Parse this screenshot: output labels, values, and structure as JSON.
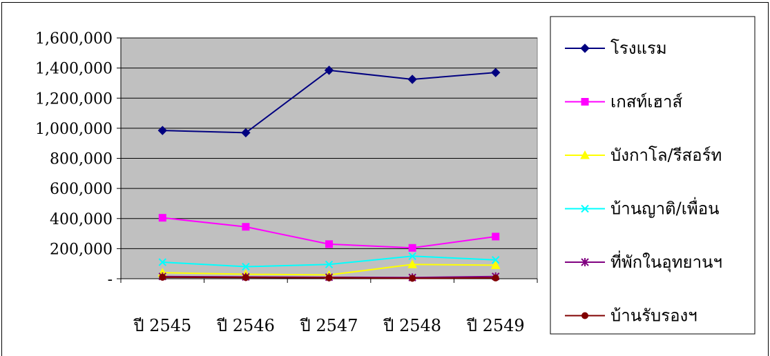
{
  "chart_data": {
    "type": "line",
    "title": "",
    "xlabel": "",
    "ylabel": "",
    "categories": [
      "ปี 2545",
      "ปี 2546",
      "ปี 2547",
      "ปี 2548",
      "ปี 2549"
    ],
    "ylim": [
      0,
      1600000
    ],
    "yticks": [
      0,
      200000,
      400000,
      600000,
      800000,
      1000000,
      1200000,
      1400000,
      1600000
    ],
    "ytick_labels": [
      "-",
      "200,000",
      "400,000",
      "600,000",
      "800,000",
      "1,000,000",
      "1,200,000",
      "1,400,000",
      "1,600,000"
    ],
    "grid": true,
    "plot_background": "#c0c0c0",
    "legend_position": "right",
    "series": [
      {
        "name": "โรงแรม",
        "color": "#000080",
        "marker": "diamond",
        "values": [
          985000,
          970000,
          1385000,
          1325000,
          1370000
        ]
      },
      {
        "name": "เกสท์เฮาส์",
        "color": "#ff00ff",
        "marker": "square",
        "values": [
          405000,
          345000,
          230000,
          205000,
          280000
        ]
      },
      {
        "name": "บังกาโล/รีสอร์ท",
        "color": "#ffff00",
        "marker": "triangle",
        "values": [
          40000,
          30000,
          25000,
          95000,
          90000
        ]
      },
      {
        "name": "บ้านญาติ/เพื่อน",
        "color": "#00ffff",
        "marker": "x",
        "values": [
          110000,
          80000,
          95000,
          150000,
          125000
        ]
      },
      {
        "name": "ที่พักในอุทยานฯ",
        "color": "#800080",
        "marker": "star",
        "values": [
          15000,
          12000,
          10000,
          8000,
          15000
        ]
      },
      {
        "name": "บ้านรับรองฯ",
        "color": "#800000",
        "marker": "circle",
        "values": [
          10000,
          8000,
          6000,
          3000,
          5000
        ]
      }
    ]
  }
}
